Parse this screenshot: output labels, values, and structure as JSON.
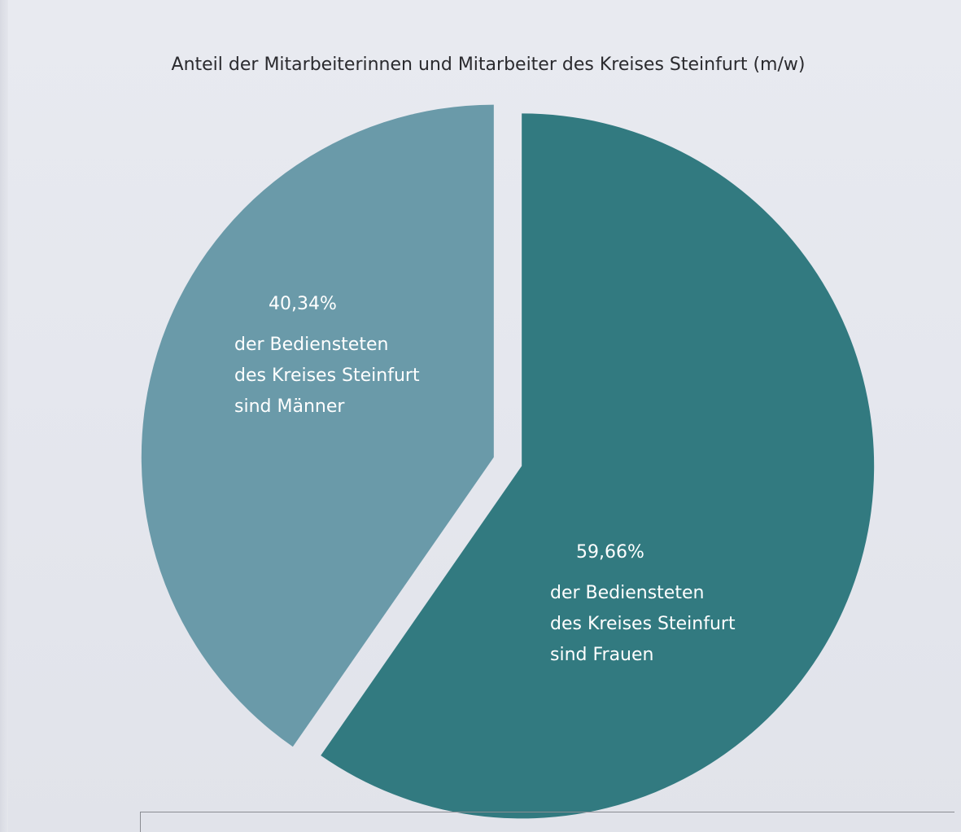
{
  "chart_data": {
    "type": "pie",
    "title": "Anteil der Mitarbeiterinnen und Mitarbeiter des Kreises Steinfurt (m/w)",
    "categories": [
      "Männer",
      "Frauen"
    ],
    "values": [
      40.34,
      59.66
    ],
    "labels": [
      {
        "value": "40,34%",
        "lines": [
          "der Bediensteten",
          "des Kreises Steinfurt",
          "sind Männer"
        ]
      },
      {
        "value": "59,66%",
        "lines": [
          "der Bediensteten",
          "des Kreises Steinfurt",
          "sind Frauen"
        ]
      }
    ],
    "colors": [
      "#6a9aa9",
      "#327a80"
    ],
    "exploded": true,
    "legend": "none"
  }
}
